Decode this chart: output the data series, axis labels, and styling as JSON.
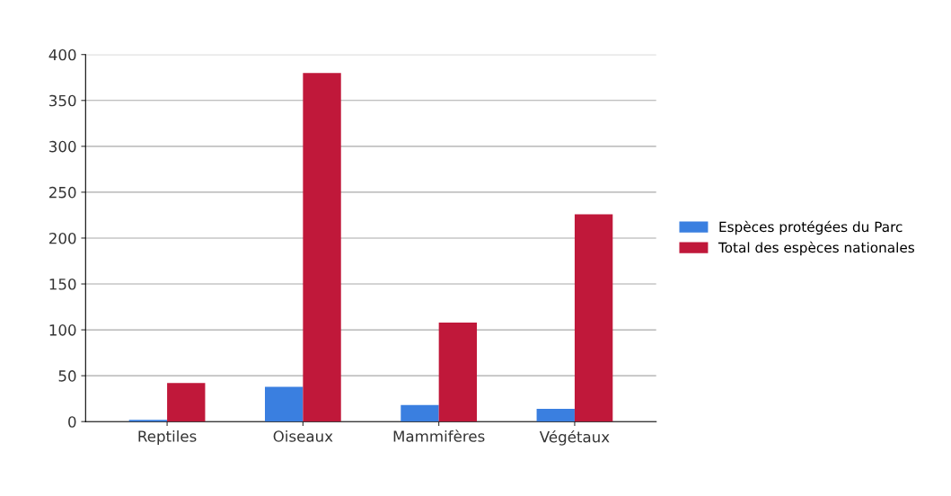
{
  "chart_data": {
    "type": "bar",
    "categories": [
      "Reptiles",
      "Oiseaux",
      "Mammifères",
      "Végétaux"
    ],
    "series": [
      {
        "name": "Espèces protégées du Parc",
        "color": "#3a7fe0",
        "values": [
          2,
          38,
          18,
          14
        ]
      },
      {
        "name": "Total des espèces nationales",
        "color": "#c0183a",
        "values": [
          42,
          380,
          108,
          226
        ]
      }
    ],
    "ylim": [
      0,
      400
    ],
    "yticks": [
      0,
      50,
      100,
      150,
      200,
      250,
      300,
      350,
      400
    ],
    "grid": "y",
    "legend": "right"
  }
}
